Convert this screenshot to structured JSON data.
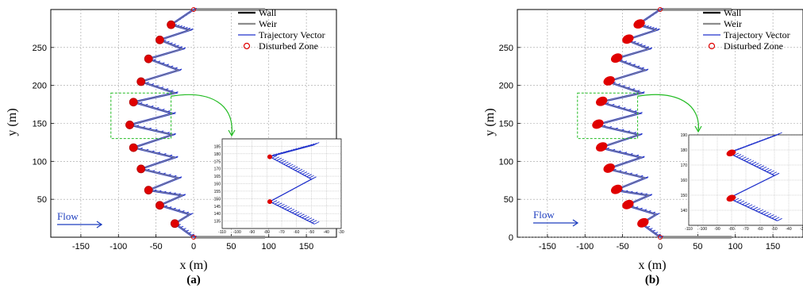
{
  "chart_data": [
    {
      "type": "line",
      "panel_label": "(a)",
      "xlabel": "x (m)",
      "ylabel": "y (m)",
      "xlim": [
        -190,
        190
      ],
      "ylim": [
        0,
        300
      ],
      "xticks": [
        -150,
        -100,
        -50,
        0,
        50,
        100,
        150
      ],
      "yticks": [
        50,
        100,
        150,
        200,
        250
      ],
      "grid": true,
      "legend_position": "top-right",
      "legend": [
        "Wall",
        "Weir",
        "Trajectory Vector",
        "Disturbed Zone"
      ],
      "annotation": "Flow",
      "weir_x": [
        0,
        -25,
        -5,
        -45,
        -15,
        -60,
        -20,
        -70,
        -25,
        -80,
        -28,
        -85,
        -28,
        -80,
        -25,
        -70,
        -20,
        -60,
        -15,
        -45,
        -5,
        -30,
        0
      ],
      "weir_y": [
        0,
        18,
        30,
        42,
        55,
        62,
        78,
        90,
        105,
        118,
        135,
        148,
        163,
        178,
        190,
        205,
        220,
        235,
        248,
        260,
        273,
        280,
        300
      ],
      "disturbed_zone": {
        "x": [
          -25,
          -45,
          -60,
          -70,
          -80,
          -85,
          -80,
          -70,
          -60,
          -45,
          -30,
          0,
          0
        ],
        "y": [
          18,
          42,
          62,
          90,
          118,
          148,
          178,
          205,
          235,
          260,
          280,
          300,
          0
        ]
      },
      "walls": [
        {
          "x": [
            0,
            95
          ],
          "y": [
            300,
            300
          ]
        },
        {
          "x": [
            0,
            95
          ],
          "y": [
            0,
            0
          ]
        }
      ],
      "zoom_box": {
        "x": [
          -110,
          -30
        ],
        "y": [
          130,
          190
        ]
      },
      "inset": {
        "xlim": [
          -110,
          -30
        ],
        "ylim": [
          130,
          190
        ],
        "xticks": [
          -110,
          -100,
          -90,
          -80,
          -70,
          -60,
          -50,
          -40,
          -30
        ],
        "yticks": [
          135,
          140,
          145,
          150,
          155,
          160,
          165,
          170,
          175,
          180,
          185
        ],
        "weir_x": [
          -48,
          -78,
          -50,
          -78,
          -48
        ],
        "weir_y": [
          186,
          178,
          163,
          148,
          133
        ],
        "disturbed_zone": {
          "x": [
            -78,
            -78
          ],
          "y": [
            178,
            148
          ]
        }
      }
    },
    {
      "type": "line",
      "panel_label": "(b)",
      "xlabel": "x (m)",
      "ylabel": "y (m)",
      "xlim": [
        -190,
        190
      ],
      "ylim": [
        0,
        300
      ],
      "xticks": [
        -150,
        -100,
        -50,
        0,
        50,
        100,
        150
      ],
      "yticks": [
        0,
        50,
        100,
        150,
        200,
        250
      ],
      "grid": true,
      "legend_position": "top-right",
      "legend": [
        "Wall",
        "Weir",
        "Trajectory Vector",
        "Disturbed Zone"
      ],
      "annotation": "Flow",
      "weir_x": [
        0,
        -25,
        -5,
        -45,
        -15,
        -60,
        -20,
        -70,
        -25,
        -80,
        -28,
        -85,
        -28,
        -80,
        -25,
        -70,
        -20,
        -60,
        -15,
        -45,
        -5,
        -30,
        0
      ],
      "weir_y": [
        0,
        18,
        30,
        42,
        55,
        62,
        78,
        90,
        105,
        118,
        135,
        148,
        163,
        178,
        190,
        205,
        220,
        235,
        248,
        260,
        273,
        280,
        300
      ],
      "disturbed_zone": {
        "x": [
          -25,
          -45,
          -60,
          -70,
          -80,
          -85,
          -80,
          -70,
          -60,
          -45,
          -30,
          0,
          0
        ],
        "y": [
          18,
          42,
          62,
          90,
          118,
          148,
          178,
          205,
          235,
          260,
          280,
          300,
          0
        ]
      },
      "walls": [
        {
          "x": [
            0,
            95
          ],
          "y": [
            300,
            300
          ]
        },
        {
          "x": [
            0,
            95
          ],
          "y": [
            0,
            0
          ]
        }
      ],
      "zoom_box": {
        "x": [
          -110,
          -30
        ],
        "y": [
          130,
          190
        ]
      },
      "inset": {
        "xlim": [
          -110,
          -30
        ],
        "ylim": [
          130,
          190
        ],
        "xticks": [
          -110,
          -100,
          -90,
          -80,
          -70,
          -60,
          -50,
          -40,
          -30
        ],
        "yticks": [
          140,
          150,
          160,
          170,
          180,
          190
        ],
        "weir_x": [
          -48,
          -82,
          -50,
          -82,
          -48
        ],
        "weir_y": [
          190,
          178,
          163,
          148,
          133
        ],
        "disturbed_zone": {
          "x": [
            -82,
            -82
          ],
          "y": [
            178,
            148
          ]
        }
      }
    }
  ],
  "colors": {
    "weir": "#8c8c8c",
    "wall": "#8c8c8c",
    "trajectory": "#2233cc",
    "disturbed": "#e00000",
    "zoom_box": "#22bb22",
    "grid": "#a0a0a0",
    "flow": "#1f3fbf"
  },
  "legend_icon_names": [
    "wall-line-icon",
    "weir-line-icon",
    "trajectory-line-icon",
    "disturbed-circle-icon"
  ]
}
